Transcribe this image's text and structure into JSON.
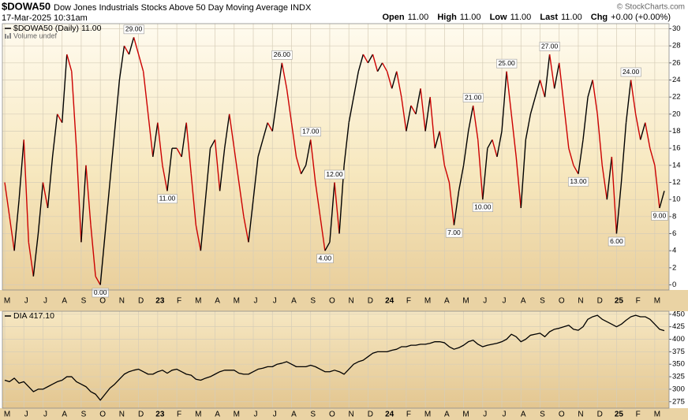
{
  "header": {
    "symbol": "$DOWA50",
    "description": "Dow Jones Industrials Stocks Above 50 Day Moving Average INDX",
    "date": "17-Mar-2025 10:31am",
    "copyright": "© StockCharts.com",
    "quote": [
      {
        "label": "Open",
        "value": "11.00"
      },
      {
        "label": "High",
        "value": "11.00"
      },
      {
        "label": "Low",
        "value": "11.00"
      },
      {
        "label": "Last",
        "value": "11.00"
      },
      {
        "label": "Chg",
        "value": "+0.00 (+0.00%)"
      }
    ]
  },
  "chart_data": [
    {
      "type": "line",
      "grid": true,
      "note": "Volume undef",
      "categories": [
        "M",
        null,
        null,
        null,
        "J",
        null,
        null,
        null,
        "J",
        null,
        null,
        null,
        "A",
        null,
        null,
        null,
        "S",
        null,
        null,
        null,
        "O",
        null,
        null,
        null,
        "N",
        null,
        null,
        null,
        "D",
        null,
        null,
        null,
        "23",
        null,
        null,
        null,
        "F",
        null,
        null,
        null,
        "M",
        null,
        null,
        null,
        "A",
        null,
        null,
        null,
        "M",
        null,
        null,
        null,
        "J",
        null,
        null,
        null,
        "J",
        null,
        null,
        null,
        "A",
        null,
        null,
        null,
        "S",
        null,
        null,
        null,
        "O",
        null,
        null,
        null,
        "N",
        null,
        null,
        null,
        "D",
        null,
        null,
        null,
        "24",
        null,
        null,
        null,
        "F",
        null,
        null,
        null,
        "M",
        null,
        null,
        null,
        "A",
        null,
        null,
        null,
        "M",
        null,
        null,
        null,
        "J",
        null,
        null,
        null,
        "J",
        null,
        null,
        null,
        "A",
        null,
        null,
        null,
        "S",
        null,
        null,
        null,
        "O",
        null,
        null,
        null,
        "N",
        null,
        null,
        null,
        "D",
        null,
        null,
        null,
        "25",
        null,
        null,
        null,
        "F",
        null,
        null,
        null,
        "M",
        null,
        null
      ],
      "series": [
        {
          "name": "$DOWA50 (Daily) 11.00",
          "color": "#000000",
          "up_color": "#000000",
          "down_color": "#cc0000",
          "values": [
            12,
            8,
            4,
            10,
            17,
            5,
            1,
            6,
            12,
            9,
            15,
            20,
            19,
            27,
            25,
            16,
            5,
            14,
            7,
            1,
            0,
            6,
            12,
            18,
            24,
            28,
            27,
            29,
            27,
            25,
            20,
            15,
            19,
            14,
            11,
            16,
            16,
            15,
            19,
            13,
            7,
            4,
            10,
            16,
            17,
            11,
            16,
            20,
            16,
            12,
            8,
            5,
            10,
            15,
            17,
            19,
            18,
            22,
            26,
            23,
            19,
            15,
            13,
            14,
            17,
            12,
            8,
            4,
            5,
            12,
            6,
            14,
            19,
            22,
            25,
            27,
            26,
            27,
            25,
            26,
            25,
            23,
            25,
            22,
            18,
            21,
            20,
            23,
            18,
            22,
            16,
            18,
            14,
            12,
            7,
            11,
            14,
            18,
            21,
            17,
            10,
            16,
            17,
            15,
            18,
            25,
            20,
            15,
            9,
            17,
            20,
            22,
            24,
            22,
            27,
            23,
            26,
            21,
            16,
            14,
            13,
            17,
            22,
            24,
            20,
            14,
            10,
            15,
            6,
            12,
            19,
            24,
            20,
            17,
            19,
            16,
            14,
            9,
            11
          ],
          "value_labels": [
            null,
            null,
            null,
            null,
            null,
            null,
            null,
            null,
            null,
            null,
            null,
            null,
            null,
            null,
            null,
            null,
            null,
            null,
            null,
            null,
            "0.00",
            null,
            null,
            null,
            null,
            null,
            null,
            "29.00",
            null,
            null,
            null,
            null,
            null,
            null,
            "11.00",
            null,
            null,
            null,
            null,
            null,
            null,
            null,
            null,
            null,
            null,
            null,
            null,
            null,
            null,
            null,
            null,
            null,
            null,
            null,
            null,
            null,
            null,
            null,
            "26.00",
            null,
            null,
            null,
            null,
            null,
            "17.00",
            null,
            null,
            "4.00",
            null,
            "12.00",
            null,
            null,
            null,
            null,
            null,
            null,
            null,
            null,
            null,
            null,
            null,
            null,
            null,
            null,
            null,
            null,
            null,
            null,
            null,
            null,
            null,
            null,
            null,
            null,
            "7.00",
            null,
            null,
            null,
            "21.00",
            null,
            "10.00",
            null,
            null,
            null,
            null,
            "25.00",
            null,
            null,
            null,
            null,
            null,
            null,
            null,
            null,
            "27.00",
            null,
            null,
            null,
            null,
            null,
            "13.00",
            null,
            null,
            null,
            null,
            null,
            null,
            null,
            "6.00",
            null,
            null,
            "24.00",
            null,
            null,
            null,
            null,
            null,
            "9.00",
            null
          ]
        }
      ],
      "ylim": [
        -0.6,
        30.6
      ],
      "yticks": [
        0,
        2,
        4,
        6,
        8,
        10,
        12,
        14,
        16,
        18,
        20,
        22,
        24,
        26,
        28,
        30
      ]
    },
    {
      "type": "line",
      "grid": true,
      "series": [
        {
          "name": "DIA 417.10",
          "color": "#000000",
          "values": [
            318,
            315,
            322,
            312,
            315,
            305,
            295,
            300,
            300,
            305,
            310,
            315,
            318,
            325,
            325,
            315,
            310,
            305,
            295,
            290,
            278,
            290,
            302,
            310,
            320,
            330,
            335,
            338,
            340,
            335,
            330,
            330,
            335,
            338,
            332,
            338,
            340,
            335,
            330,
            328,
            320,
            318,
            322,
            325,
            330,
            335,
            338,
            338,
            338,
            332,
            330,
            330,
            335,
            340,
            342,
            345,
            345,
            350,
            352,
            355,
            350,
            345,
            345,
            345,
            348,
            345,
            340,
            335,
            335,
            338,
            335,
            330,
            340,
            350,
            355,
            358,
            365,
            372,
            375,
            375,
            375,
            378,
            380,
            385,
            385,
            388,
            388,
            390,
            390,
            392,
            395,
            395,
            393,
            385,
            380,
            383,
            388,
            395,
            398,
            390,
            385,
            388,
            390,
            392,
            395,
            400,
            410,
            405,
            395,
            400,
            408,
            410,
            412,
            405,
            415,
            420,
            422,
            425,
            428,
            420,
            418,
            425,
            440,
            445,
            448,
            440,
            435,
            430,
            425,
            430,
            438,
            445,
            448,
            445,
            445,
            440,
            430,
            420,
            417.1
          ]
        }
      ],
      "ylim": [
        262,
        456
      ],
      "yticks": [
        275,
        300,
        325,
        350,
        375,
        400,
        425,
        450
      ]
    }
  ]
}
